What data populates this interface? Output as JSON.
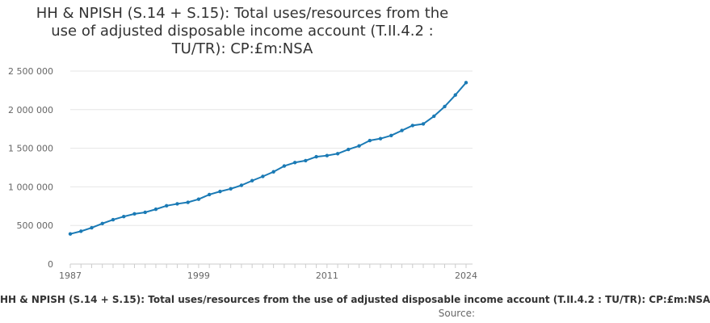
{
  "chart_data": {
    "type": "line",
    "title": "HH & NPISH (S.14 + S.15): Total uses/resources from the use of adjusted disposable income account (T.II.4.2 : TU/TR): CP:£m:NSA",
    "xlabel": "",
    "ylabel": "",
    "x_ticks": [
      "1987",
      "1999",
      "2011",
      "2024"
    ],
    "y_ticks": [
      "0",
      "500 000",
      "1 000 000",
      "1 500 000",
      "2 000 000",
      "2 500 000"
    ],
    "y_tick_values": [
      0,
      500000,
      1000000,
      1500000,
      2000000,
      2500000
    ],
    "xlim": [
      1987,
      2024
    ],
    "ylim": [
      0,
      2500000
    ],
    "grid": "horizontal",
    "line_color": "#1a7ab5",
    "series": [
      {
        "x": [
          1987,
          1988,
          1989,
          1990,
          1991,
          1992,
          1993,
          1994,
          1995,
          1996,
          1997,
          1998,
          1999,
          2000,
          2001,
          2002,
          2003,
          2004,
          2005,
          2006,
          2007,
          2008,
          2009,
          2010,
          2011,
          2012,
          2013,
          2014,
          2015,
          2016,
          2017,
          2018,
          2019,
          2020,
          2021,
          2022,
          2023,
          2024
        ],
        "values": [
          390000,
          425000,
          470000,
          525000,
          575000,
          615000,
          650000,
          670000,
          710000,
          755000,
          780000,
          800000,
          840000,
          900000,
          940000,
          975000,
          1020000,
          1080000,
          1135000,
          1195000,
          1270000,
          1315000,
          1340000,
          1390000,
          1405000,
          1430000,
          1485000,
          1530000,
          1600000,
          1625000,
          1665000,
          1730000,
          1795000,
          1815000,
          1915000,
          2040000,
          2190000,
          2350000
        ]
      }
    ]
  },
  "footer": {
    "series_label": "HH & NPISH (S.14 + S.15): Total uses/resources from the use of adjusted disposable income account (T.II.4.2 : TU/TR): CP:£m:NSA",
    "source_label": "Source:"
  }
}
